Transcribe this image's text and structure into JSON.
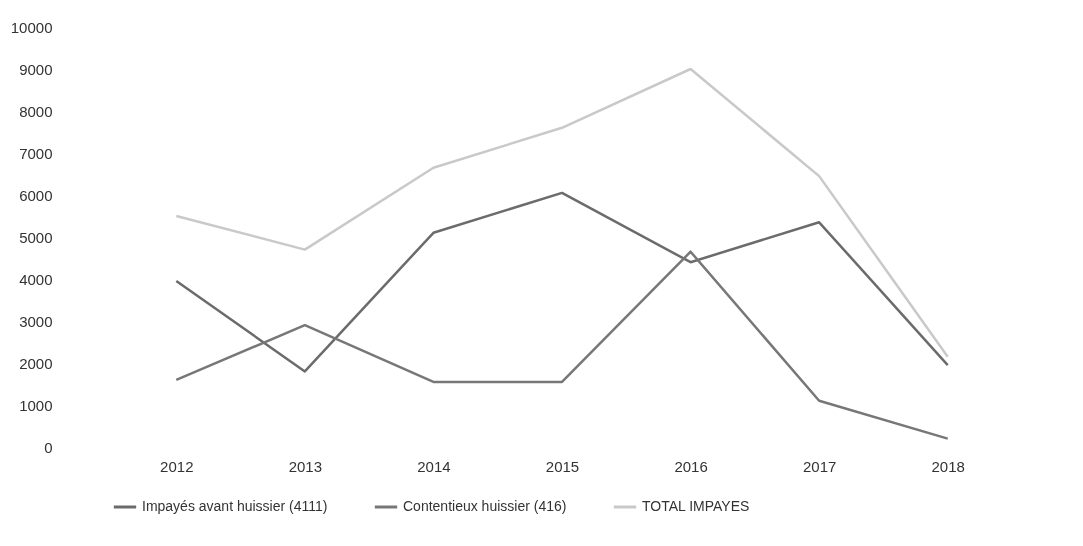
{
  "chart_data": {
    "type": "line",
    "categories": [
      "2012",
      "2013",
      "2014",
      "2015",
      "2016",
      "2017",
      "2018"
    ],
    "series": [
      {
        "name": "Impayés avant huissier (4111)",
        "color": "#6b6b6b",
        "values": [
          3950,
          1800,
          5100,
          6050,
          4400,
          5350,
          1950
        ]
      },
      {
        "name": "Contentieux huissier (416)",
        "color": "#777777",
        "values": [
          1600,
          2900,
          1550,
          1550,
          4650,
          1100,
          200
        ]
      },
      {
        "name": "TOTAL IMPAYES",
        "color": "#c9c9c9",
        "values": [
          5500,
          4700,
          6650,
          7600,
          9000,
          6450,
          2150
        ]
      }
    ],
    "ylim": [
      0,
      10000
    ],
    "yticks": [
      0,
      1000,
      2000,
      3000,
      4000,
      5000,
      6000,
      7000,
      8000,
      9000,
      10000
    ],
    "grid": false,
    "legend": "bottom",
    "marker": "none",
    "line_style": "solid"
  }
}
